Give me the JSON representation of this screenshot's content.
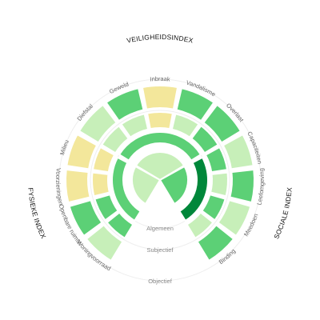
{
  "chart_data": {
    "type": "sunburst",
    "indices": [
      {
        "name": "VEILIGHEIDSINDEX",
        "start_deg": -60,
        "end_deg": 60
      },
      {
        "name": "SOCIALE INDEX",
        "start_deg": 60,
        "end_deg": 150
      },
      {
        "name": "FYSIEKE INDEX",
        "start_deg": -150,
        "end_deg": -60
      }
    ],
    "levels": [
      "Objectief",
      "Subjectief",
      "Algemeen"
    ],
    "color_scale": [
      "#f3e79b",
      "#c7efb9",
      "#5cd076",
      "#00873a"
    ],
    "categories": [
      {
        "label": "Diefstal",
        "index": "VEILIGHEIDSINDEX",
        "start_deg": -60,
        "end_deg": -36,
        "objectief": 1,
        "subjectief": 1
      },
      {
        "label": "Geweld",
        "index": "VEILIGHEIDSINDEX",
        "start_deg": -36,
        "end_deg": -12,
        "objectief": 2,
        "subjectief": 1
      },
      {
        "label": "Inbraak",
        "index": "VEILIGHEIDSINDEX",
        "start_deg": -12,
        "end_deg": 12,
        "objectief": 0,
        "subjectief": 0
      },
      {
        "label": "Vandalisme",
        "index": "VEILIGHEIDSINDEX",
        "start_deg": 12,
        "end_deg": 36,
        "objectief": 2,
        "subjectief": 1
      },
      {
        "label": "Overlast",
        "index": "VEILIGHEIDSINDEX",
        "start_deg": 36,
        "end_deg": 60,
        "objectief": 2,
        "subjectief": 2
      },
      {
        "label": "Capaciteiten",
        "index": "SOCIALE INDEX",
        "start_deg": 60,
        "end_deg": 82.5,
        "objectief": 1,
        "subjectief": 2
      },
      {
        "label": "Leefomgeving",
        "index": "SOCIALE INDEX",
        "start_deg": 82.5,
        "end_deg": 105,
        "objectief": 2,
        "subjectief": 1
      },
      {
        "label": "Meedoen",
        "index": "SOCIALE INDEX",
        "start_deg": 105,
        "end_deg": 127.5,
        "objectief": 1,
        "subjectief": 2
      },
      {
        "label": "Binding",
        "index": "SOCIALE INDEX",
        "start_deg": 127.5,
        "end_deg": 150,
        "objectief": 2,
        "subjectief": 1
      },
      {
        "label": "Voorzieningen",
        "index": "FYSIEKE INDEX",
        "start_deg": -105,
        "end_deg": -82.5,
        "objectief": 0,
        "subjectief": 0
      },
      {
        "label": "Openbare ruimte",
        "index": "FYSIEKE INDEX",
        "start_deg": -127.5,
        "end_deg": -105,
        "objectief": 2,
        "subjectief": 2
      },
      {
        "label": "Woningvoorraad",
        "index": "FYSIEKE INDEX",
        "start_deg": -150,
        "end_deg": -127.5,
        "objectief": 1,
        "subjectief": 2
      },
      {
        "label": "Milieu",
        "index": "FYSIEKE INDEX",
        "start_deg": -82.5,
        "end_deg": -60,
        "objectief": 0,
        "subjectief": 0
      }
    ],
    "algemeen": [
      {
        "index": "VEILIGHEIDSINDEX",
        "value": 2
      },
      {
        "index": "SOCIALE INDEX",
        "value": 3
      },
      {
        "index": "FYSIEKE INDEX",
        "value": 2
      }
    ],
    "center": [
      {
        "index": "VEILIGHEIDSINDEX",
        "value": 1
      },
      {
        "index": "SOCIALE INDEX",
        "value": 2
      },
      {
        "index": "FYSIEKE INDEX",
        "value": 1
      }
    ]
  }
}
